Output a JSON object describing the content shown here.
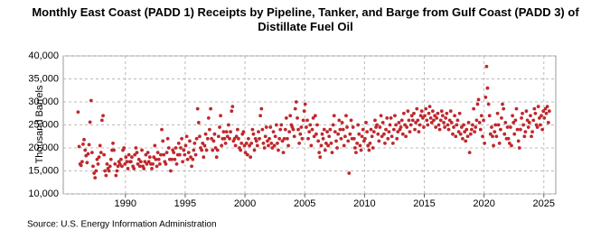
{
  "chart_data": {
    "type": "scatter",
    "title": "Monthly East Coast (PADD 1) Receipts by Pipeline, Tanker, and Barge from Gulf Coast (PADD 3) of Distillate Fuel Oil",
    "ylabel": "Thousand Barrels",
    "source": "Source: U.S. Energy Information Administration",
    "color": "#c0282c",
    "grid": true,
    "xlim": [
      1984.8,
      2026
    ],
    "xticks": [
      1990,
      1995,
      2000,
      2005,
      2010,
      2015,
      2020,
      2025
    ],
    "ylim": [
      10000,
      40000
    ],
    "yticks": [
      {
        "value": 10000,
        "label": "10,000"
      },
      {
        "value": 15000,
        "label": "15,000"
      },
      {
        "value": 20000,
        "label": "20,000"
      },
      {
        "value": 25000,
        "label": "25,000"
      },
      {
        "value": 30000,
        "label": "30,000"
      },
      {
        "value": 35000,
        "label": "35,000"
      },
      {
        "value": 40000,
        "label": "40,000"
      }
    ],
    "x": [
      1986.04,
      1986.13,
      1986.21,
      1986.29,
      1986.38,
      1986.46,
      1986.54,
      1986.63,
      1986.71,
      1986.79,
      1986.88,
      1986.96,
      1987.04,
      1987.13,
      1987.21,
      1987.29,
      1987.38,
      1987.46,
      1987.54,
      1987.63,
      1987.71,
      1987.79,
      1987.88,
      1987.96,
      1988.04,
      1988.13,
      1988.21,
      1988.29,
      1988.38,
      1988.46,
      1988.54,
      1988.63,
      1988.71,
      1988.79,
      1988.88,
      1988.96,
      1989.04,
      1989.13,
      1989.21,
      1989.29,
      1989.38,
      1989.46,
      1989.54,
      1989.63,
      1989.71,
      1989.79,
      1989.88,
      1989.96,
      1990.04,
      1990.13,
      1990.21,
      1990.29,
      1990.38,
      1990.46,
      1990.54,
      1990.63,
      1990.71,
      1990.79,
      1990.88,
      1990.96,
      1991.04,
      1991.13,
      1991.21,
      1991.29,
      1991.38,
      1991.46,
      1991.54,
      1991.63,
      1991.71,
      1991.79,
      1991.88,
      1991.96,
      1992.04,
      1992.13,
      1992.21,
      1992.29,
      1992.38,
      1992.46,
      1992.54,
      1992.63,
      1992.71,
      1992.79,
      1992.88,
      1992.96,
      1993.04,
      1993.13,
      1993.21,
      1993.29,
      1993.38,
      1993.46,
      1993.54,
      1993.63,
      1993.71,
      1993.79,
      1993.88,
      1993.96,
      1994.04,
      1994.13,
      1994.21,
      1994.29,
      1994.38,
      1994.46,
      1994.54,
      1994.63,
      1994.71,
      1994.79,
      1994.88,
      1994.96,
      1995.04,
      1995.13,
      1995.21,
      1995.29,
      1995.38,
      1995.46,
      1995.54,
      1995.63,
      1995.71,
      1995.79,
      1995.88,
      1995.96,
      1996.04,
      1996.13,
      1996.21,
      1996.29,
      1996.38,
      1996.46,
      1996.54,
      1996.63,
      1996.71,
      1996.79,
      1996.88,
      1996.96,
      1997.04,
      1997.13,
      1997.21,
      1997.29,
      1997.38,
      1997.46,
      1997.54,
      1997.63,
      1997.71,
      1997.79,
      1997.88,
      1997.96,
      1998.04,
      1998.13,
      1998.21,
      1998.29,
      1998.38,
      1998.46,
      1998.54,
      1998.63,
      1998.71,
      1998.79,
      1998.88,
      1998.96,
      1999.04,
      1999.13,
      1999.21,
      1999.29,
      1999.38,
      1999.46,
      1999.54,
      1999.63,
      1999.71,
      1999.79,
      1999.88,
      1999.96,
      2000.04,
      2000.13,
      2000.21,
      2000.29,
      2000.38,
      2000.46,
      2000.54,
      2000.63,
      2000.71,
      2000.79,
      2000.88,
      2000.96,
      2001.04,
      2001.13,
      2001.21,
      2001.29,
      2001.38,
      2001.46,
      2001.54,
      2001.63,
      2001.71,
      2001.79,
      2001.88,
      2001.96,
      2002.04,
      2002.13,
      2002.21,
      2002.29,
      2002.38,
      2002.46,
      2002.54,
      2002.63,
      2002.71,
      2002.79,
      2002.88,
      2002.96,
      2003.04,
      2003.13,
      2003.21,
      2003.29,
      2003.38,
      2003.46,
      2003.54,
      2003.63,
      2003.71,
      2003.79,
      2003.88,
      2003.96,
      2004.04,
      2004.13,
      2004.21,
      2004.29,
      2004.38,
      2004.46,
      2004.54,
      2004.63,
      2004.71,
      2004.79,
      2004.88,
      2004.96,
      2005.04,
      2005.13,
      2005.21,
      2005.29,
      2005.38,
      2005.46,
      2005.54,
      2005.63,
      2005.71,
      2005.79,
      2005.88,
      2005.96,
      2006.04,
      2006.13,
      2006.21,
      2006.29,
      2006.38,
      2006.46,
      2006.54,
      2006.63,
      2006.71,
      2006.79,
      2006.88,
      2006.96,
      2007.04,
      2007.13,
      2007.21,
      2007.29,
      2007.38,
      2007.46,
      2007.54,
      2007.63,
      2007.71,
      2007.79,
      2007.88,
      2007.96,
      2008.04,
      2008.13,
      2008.21,
      2008.29,
      2008.38,
      2008.46,
      2008.54,
      2008.63,
      2008.71,
      2008.79,
      2008.88,
      2008.96,
      2009.04,
      2009.13,
      2009.21,
      2009.29,
      2009.38,
      2009.46,
      2009.54,
      2009.63,
      2009.71,
      2009.79,
      2009.88,
      2009.96,
      2010.04,
      2010.13,
      2010.21,
      2010.29,
      2010.38,
      2010.46,
      2010.54,
      2010.63,
      2010.71,
      2010.79,
      2010.88,
      2010.96,
      2011.04,
      2011.13,
      2011.21,
      2011.29,
      2011.38,
      2011.46,
      2011.54,
      2011.63,
      2011.71,
      2011.79,
      2011.88,
      2011.96,
      2012.04,
      2012.13,
      2012.21,
      2012.29,
      2012.38,
      2012.46,
      2012.54,
      2012.63,
      2012.71,
      2012.79,
      2012.88,
      2012.96,
      2013.04,
      2013.13,
      2013.21,
      2013.29,
      2013.38,
      2013.46,
      2013.54,
      2013.63,
      2013.71,
      2013.79,
      2013.88,
      2013.96,
      2014.04,
      2014.13,
      2014.21,
      2014.29,
      2014.38,
      2014.46,
      2014.54,
      2014.63,
      2014.71,
      2014.79,
      2014.88,
      2014.96,
      2015.04,
      2015.13,
      2015.21,
      2015.29,
      2015.38,
      2015.46,
      2015.54,
      2015.63,
      2015.71,
      2015.79,
      2015.88,
      2015.96,
      2016.04,
      2016.13,
      2016.21,
      2016.29,
      2016.38,
      2016.46,
      2016.54,
      2016.63,
      2016.71,
      2016.79,
      2016.88,
      2016.96,
      2017.04,
      2017.13,
      2017.21,
      2017.29,
      2017.38,
      2017.46,
      2017.54,
      2017.63,
      2017.71,
      2017.79,
      2017.88,
      2017.96,
      2018.04,
      2018.13,
      2018.21,
      2018.29,
      2018.38,
      2018.46,
      2018.54,
      2018.63,
      2018.71,
      2018.79,
      2018.88,
      2018.96,
      2019.04,
      2019.13,
      2019.21,
      2019.29,
      2019.38,
      2019.46,
      2019.54,
      2019.63,
      2019.71,
      2019.79,
      2019.88,
      2019.96,
      2020.04,
      2020.13,
      2020.21,
      2020.29,
      2020.38,
      2020.46,
      2020.54,
      2020.63,
      2020.71,
      2020.79,
      2020.88,
      2020.96,
      2021.04,
      2021.13,
      2021.21,
      2021.29,
      2021.38,
      2021.46,
      2021.54,
      2021.63,
      2021.71,
      2021.79,
      2021.88,
      2021.96,
      2022.04,
      2022.13,
      2022.21,
      2022.29,
      2022.38,
      2022.46,
      2022.54,
      2022.63,
      2022.71,
      2022.79,
      2022.88,
      2022.96,
      2023.04,
      2023.13,
      2023.21,
      2023.29,
      2023.38,
      2023.46,
      2023.54,
      2023.63,
      2023.71,
      2023.79,
      2023.88,
      2023.96,
      2024.04,
      2024.13,
      2024.21,
      2024.29,
      2024.38,
      2024.46,
      2024.54,
      2024.63,
      2024.71,
      2024.79,
      2024.88,
      2024.96,
      2025.04,
      2025.13,
      2025.21,
      2025.29,
      2025.38,
      2025.46
    ],
    "values": [
      27800,
      20300,
      16500,
      16200,
      17000,
      20800,
      21800,
      19500,
      18300,
      16800,
      18700,
      20700,
      25600,
      30300,
      19000,
      16000,
      14500,
      13500,
      15000,
      17500,
      16500,
      18000,
      20500,
      19000,
      26000,
      27000,
      18500,
      15000,
      14000,
      16500,
      15500,
      15000,
      16000,
      17500,
      19500,
      21000,
      19500,
      16500,
      14000,
      15000,
      16000,
      17000,
      16500,
      17500,
      16000,
      19500,
      20000,
      16500,
      18000,
      17000,
      15500,
      18500,
      17000,
      17000,
      18000,
      16000,
      15500,
      18500,
      20000,
      19000,
      16500,
      17500,
      16000,
      17000,
      19500,
      16000,
      15500,
      17000,
      18500,
      16500,
      19000,
      17000,
      18000,
      16500,
      15500,
      16500,
      18000,
      20500,
      17500,
      16000,
      19000,
      17500,
      16500,
      18500,
      24000,
      21500,
      18500,
      17000,
      16500,
      19000,
      22000,
      20000,
      17500,
      15000,
      17500,
      19500,
      19000,
      17500,
      20000,
      16500,
      18500,
      21000,
      18500,
      20000,
      22000,
      17000,
      19500,
      18500,
      20500,
      22500,
      17500,
      19000,
      21500,
      18000,
      16000,
      17500,
      19500,
      21000,
      18500,
      22000,
      28500,
      25500,
      22500,
      20000,
      19500,
      21000,
      18000,
      20500,
      23000,
      19500,
      22000,
      26500,
      24000,
      28500,
      22000,
      19500,
      21500,
      23000,
      20000,
      18000,
      19500,
      22500,
      24500,
      27000,
      20500,
      22000,
      23500,
      22000,
      21000,
      23500,
      22500,
      25000,
      22000,
      23500,
      28000,
      29000,
      21500,
      22000,
      20500,
      22500,
      24000,
      22000,
      20000,
      19500,
      21000,
      23000,
      23500,
      20500,
      19000,
      21000,
      18500,
      22000,
      20500,
      18000,
      21000,
      24000,
      23000,
      19500,
      22000,
      21500,
      20500,
      23500,
      22000,
      27000,
      28500,
      24000,
      21000,
      20000,
      22500,
      24500,
      21500,
      20500,
      22000,
      24500,
      21000,
      20000,
      23500,
      20500,
      22500,
      25000,
      21000,
      19500,
      22000,
      24000,
      25000,
      21500,
      19000,
      22000,
      24000,
      26500,
      22000,
      20500,
      23500,
      27000,
      25000,
      24500,
      24000,
      22500,
      28500,
      30000,
      26500,
      24000,
      21000,
      23000,
      24500,
      22000,
      26000,
      28000,
      29500,
      24500,
      26000,
      22000,
      23500,
      25000,
      20500,
      24000,
      26500,
      22500,
      27000,
      23000,
      25000,
      21500,
      19000,
      18000,
      20500,
      23000,
      22000,
      24000,
      19500,
      21000,
      23500,
      20500,
      22500,
      24000,
      21000,
      19000,
      25000,
      27000,
      23500,
      21500,
      20000,
      23000,
      26000,
      24000,
      22000,
      25500,
      24000,
      20500,
      22500,
      27000,
      24500,
      21500,
      14500,
      23000,
      26000,
      22000,
      24500,
      22000,
      20000,
      19000,
      21000,
      25000,
      23000,
      20500,
      19500,
      22500,
      24000,
      21500,
      22000,
      25500,
      23500,
      20500,
      19500,
      21000,
      24000,
      22500,
      20000,
      23500,
      26000,
      24500,
      25000,
      23000,
      21500,
      24500,
      27000,
      22500,
      25500,
      23000,
      21000,
      24000,
      26500,
      22000,
      23500,
      25000,
      26500,
      22500,
      21000,
      24000,
      27000,
      25000,
      22000,
      23500,
      25500,
      24000,
      24500,
      26000,
      23000,
      27500,
      25000,
      22500,
      24500,
      28000,
      26000,
      23500,
      25000,
      27000,
      26000,
      27500,
      24000,
      25500,
      28500,
      26000,
      23500,
      25000,
      27000,
      28000,
      26500,
      24500,
      27000,
      28500,
      26000,
      25000,
      27500,
      29000,
      26500,
      25500,
      28000,
      26000,
      27000,
      24500,
      26500,
      27500,
      25000,
      24000,
      26000,
      28000,
      27000,
      25500,
      24500,
      26500,
      27500,
      25000,
      24000,
      26000,
      28000,
      25500,
      23000,
      24500,
      27000,
      22500,
      25000,
      26000,
      23500,
      27500,
      23000,
      24500,
      22000,
      25000,
      23500,
      21500,
      24000,
      22500,
      25500,
      19000,
      23000,
      24000,
      25000,
      28500,
      23500,
      24500,
      26000,
      29500,
      30500,
      25500,
      24000,
      27000,
      22500,
      26000,
      21000,
      31000,
      37700,
      33000,
      29500,
      27000,
      23000,
      24500,
      22500,
      20500,
      23500,
      25000,
      22500,
      27500,
      25000,
      21000,
      24000,
      26500,
      29500,
      28500,
      23000,
      25500,
      22000,
      24500,
      22000,
      21000,
      24500,
      20500,
      27000,
      25500,
      23000,
      26000,
      28500,
      24000,
      21500,
      20000,
      24000,
      26500,
      27500,
      25000,
      22500,
      23500,
      28000,
      26000,
      24500,
      25500,
      27000,
      22500,
      23500,
      26000,
      28500,
      27500,
      25000,
      24500,
      29000,
      26500,
      25000,
      27000,
      24000,
      28000,
      26500,
      28500,
      27500,
      29000,
      25500,
      28000
    ]
  }
}
